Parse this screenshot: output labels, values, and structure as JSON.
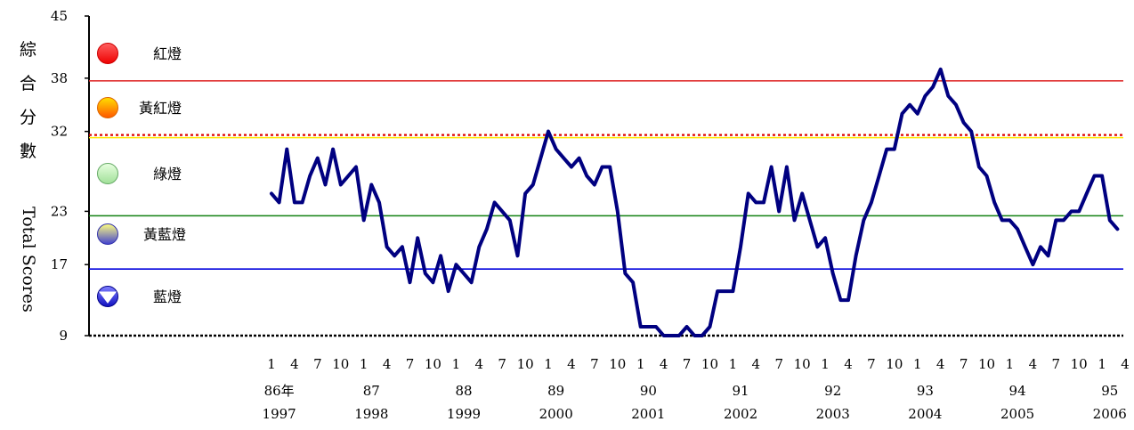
{
  "chart_data": {
    "type": "line",
    "ylabel_cn": "綜合分數",
    "ylabel_en": "Total Scores",
    "ylim": [
      9,
      45
    ],
    "yticks": [
      {
        "value": 9,
        "label": "9"
      },
      {
        "value": 17,
        "label": "17"
      },
      {
        "value": 23,
        "label": "23"
      },
      {
        "value": 32,
        "label": "32"
      },
      {
        "value": 38,
        "label": "38"
      },
      {
        "value": 45,
        "label": "45"
      }
    ],
    "thresholds": [
      {
        "value": 37.7,
        "color": "#e03030"
      },
      {
        "value": 31.3,
        "color": "#ffe800"
      },
      {
        "value": 22.5,
        "color": "#108010"
      },
      {
        "value": 16.5,
        "color": "#0000dd"
      }
    ],
    "dotted_line": {
      "value": 31.6,
      "color": "#dd0000"
    },
    "legend": [
      {
        "label": "紅燈",
        "icon": "red-light-icon",
        "color": "#ee1010"
      },
      {
        "label": "黃紅燈",
        "icon": "yellow-red-light-icon",
        "color": "#ff8800"
      },
      {
        "label": "綠燈",
        "icon": "green-light-icon",
        "color": "#a8e6a0"
      },
      {
        "label": "黃藍燈",
        "icon": "yellow-blue-light-icon",
        "color": "#6070e0"
      },
      {
        "label": "藍燈",
        "icon": "blue-light-icon",
        "color": "#1010cc"
      }
    ],
    "x_month_ticks": [
      "1",
      "4",
      "7",
      "10",
      "1",
      "4",
      "7",
      "10",
      "1",
      "4",
      "7",
      "10",
      "1",
      "4",
      "7",
      "10",
      "1",
      "4",
      "7",
      "10",
      "1",
      "4",
      "7",
      "10",
      "1",
      "4",
      "7",
      "10",
      "1",
      "4",
      "7",
      "10",
      "1",
      "4",
      "7",
      "10",
      "1",
      "4",
      "7",
      "10",
      "1",
      "4"
    ],
    "year_labels": [
      {
        "roc": "86年",
        "ad": "1997"
      },
      {
        "roc": "87",
        "ad": "1998"
      },
      {
        "roc": "88",
        "ad": "1999"
      },
      {
        "roc": "89",
        "ad": "2000"
      },
      {
        "roc": "90",
        "ad": "2001"
      },
      {
        "roc": "91",
        "ad": "2002"
      },
      {
        "roc": "92",
        "ad": "2003"
      },
      {
        "roc": "93",
        "ad": "2004"
      },
      {
        "roc": "94",
        "ad": "2005"
      },
      {
        "roc": "95",
        "ad": "2006"
      }
    ],
    "series": [
      {
        "color": "#000080",
        "start": "1997-01",
        "values": [
          25,
          24,
          30,
          24,
          24,
          27,
          29,
          26,
          30,
          26,
          27,
          28,
          22,
          26,
          24,
          19,
          18,
          19,
          15,
          20,
          16,
          15,
          18,
          14,
          17,
          16,
          15,
          19,
          21,
          24,
          23,
          22,
          18,
          25,
          26,
          29,
          32,
          30,
          29,
          28,
          29,
          27,
          26,
          28,
          28,
          23,
          16,
          15,
          10,
          10,
          10,
          9,
          9,
          9,
          10,
          9,
          9,
          10,
          14,
          14,
          14,
          19,
          25,
          24,
          24,
          28,
          23,
          28,
          22,
          25,
          22,
          19,
          20,
          16,
          13,
          13,
          18,
          22,
          24,
          27,
          30,
          30,
          34,
          35,
          34,
          36,
          37,
          39,
          36,
          35,
          33,
          32,
          28,
          27,
          24,
          22,
          22,
          21,
          19,
          17,
          19,
          18,
          22,
          22,
          23,
          23,
          25,
          27,
          27,
          22,
          21
        ]
      }
    ]
  }
}
